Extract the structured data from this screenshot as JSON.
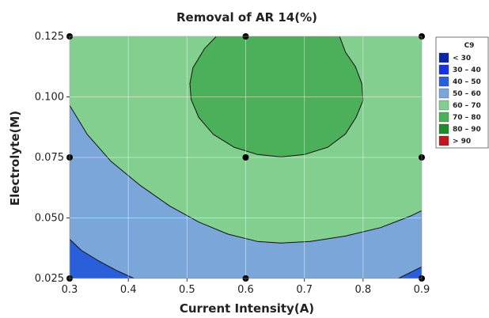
{
  "chart_data": {
    "type": "contour",
    "title": "Removal of AR 14(%)",
    "xlabel": "Current Intensity(A)",
    "ylabel": "Electrolyte(M)",
    "xlim": [
      0.3,
      0.9
    ],
    "ylim": [
      0.025,
      0.125
    ],
    "xticks": [
      "0.3",
      "0.4",
      "0.5",
      "0.6",
      "0.7",
      "0.8",
      "0.9"
    ],
    "yticks": [
      "0.025",
      "0.050",
      "0.075",
      "0.100",
      "0.125"
    ],
    "grid": true,
    "legend": {
      "title": "C9",
      "placement": "right",
      "entries": [
        {
          "label": "<  30",
          "color": "#0b23a8"
        },
        {
          "label": "30  –  40",
          "color": "#1631e6"
        },
        {
          "label": "40  –  50",
          "color": "#2a5fdc"
        },
        {
          "label": "50  –  60",
          "color": "#7aa6da"
        },
        {
          "label": "60  –  70",
          "color": "#82cf8f"
        },
        {
          "label": "70  –  80",
          "color": "#4caf5a"
        },
        {
          "label": "80  –  90",
          "color": "#1c8b2a"
        },
        {
          "label": ">  90",
          "color": "#c4151c"
        }
      ]
    },
    "design_points": [
      {
        "x": 0.3,
        "y": 0.025
      },
      {
        "x": 0.6,
        "y": 0.025
      },
      {
        "x": 0.9,
        "y": 0.025
      },
      {
        "x": 0.3,
        "y": 0.075
      },
      {
        "x": 0.6,
        "y": 0.075
      },
      {
        "x": 0.9,
        "y": 0.075
      },
      {
        "x": 0.3,
        "y": 0.125
      },
      {
        "x": 0.6,
        "y": 0.125
      },
      {
        "x": 0.9,
        "y": 0.125
      }
    ],
    "regions": [
      {
        "level": "60 – 70",
        "color": "#82cf8f",
        "points": [
          [
            0.3,
            0.125
          ],
          [
            0.9,
            0.125
          ],
          [
            0.9,
            0.025
          ],
          [
            0.3,
            0.025
          ]
        ]
      },
      {
        "level": "50 – 60",
        "color": "#7aa6da",
        "points": [
          [
            0.3,
            0.0965
          ],
          [
            0.33,
            0.0845
          ],
          [
            0.37,
            0.0735
          ],
          [
            0.42,
            0.0635
          ],
          [
            0.47,
            0.055
          ],
          [
            0.52,
            0.0483
          ],
          [
            0.57,
            0.0433
          ],
          [
            0.62,
            0.0403
          ],
          [
            0.66,
            0.0396
          ],
          [
            0.71,
            0.0403
          ],
          [
            0.77,
            0.0425
          ],
          [
            0.83,
            0.046
          ],
          [
            0.88,
            0.0507
          ],
          [
            0.9,
            0.053
          ],
          [
            0.9,
            0.025
          ],
          [
            0.3,
            0.025
          ]
        ]
      },
      {
        "level": "40 – 50",
        "color": "#2a5fdc",
        "points": [
          [
            0.3,
            0.0412
          ],
          [
            0.32,
            0.0366
          ],
          [
            0.35,
            0.0322
          ],
          [
            0.38,
            0.0283
          ],
          [
            0.41,
            0.025
          ],
          [
            0.3,
            0.025
          ]
        ]
      },
      {
        "level": "40 – 50",
        "color": "#2a5fdc",
        "points": [
          [
            0.86,
            0.025
          ],
          [
            0.9,
            0.0298
          ],
          [
            0.9,
            0.025
          ]
        ]
      },
      {
        "level": "70 – 80",
        "color": "#4caf5a",
        "points": [
          [
            0.55,
            0.125
          ],
          [
            0.53,
            0.12
          ],
          [
            0.51,
            0.112
          ],
          [
            0.505,
            0.1055
          ],
          [
            0.507,
            0.099
          ],
          [
            0.52,
            0.0915
          ],
          [
            0.545,
            0.0845
          ],
          [
            0.58,
            0.0792
          ],
          [
            0.62,
            0.0762
          ],
          [
            0.66,
            0.0752
          ],
          [
            0.7,
            0.0762
          ],
          [
            0.74,
            0.0792
          ],
          [
            0.77,
            0.0847
          ],
          [
            0.788,
            0.0915
          ],
          [
            0.8,
            0.0985
          ],
          [
            0.798,
            0.1055
          ],
          [
            0.787,
            0.1125
          ],
          [
            0.77,
            0.1185
          ],
          [
            0.76,
            0.125
          ]
        ]
      }
    ]
  }
}
